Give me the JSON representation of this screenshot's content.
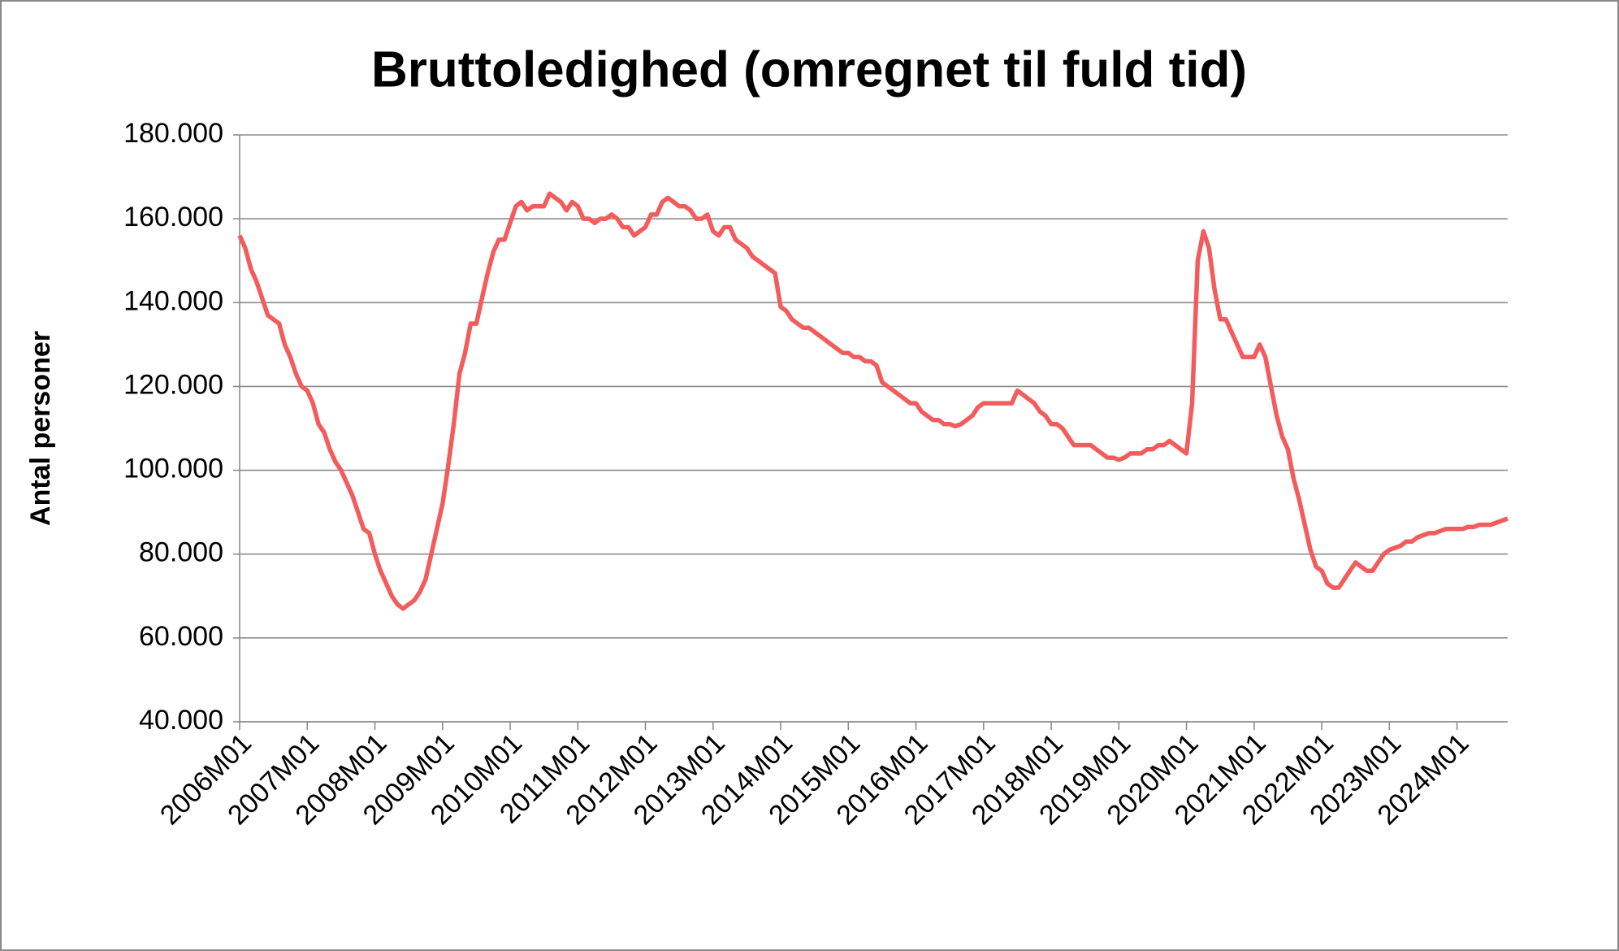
{
  "chart_data": {
    "type": "line",
    "title": "Bruttoledighed (omregnet til fuld tid)",
    "y_label": "Antal personer",
    "categories": [
      "2006M01",
      null,
      null,
      null,
      null,
      null,
      null,
      null,
      null,
      null,
      null,
      null,
      "2007M01",
      null,
      null,
      null,
      null,
      null,
      null,
      null,
      null,
      null,
      null,
      null,
      "2008M01",
      null,
      null,
      null,
      null,
      null,
      null,
      null,
      null,
      null,
      null,
      null,
      "2009M01",
      null,
      null,
      null,
      null,
      null,
      null,
      null,
      null,
      null,
      null,
      null,
      "2010M01",
      null,
      null,
      null,
      null,
      null,
      null,
      null,
      null,
      null,
      null,
      null,
      "2011M01",
      null,
      null,
      null,
      null,
      null,
      null,
      null,
      null,
      null,
      null,
      null,
      "2012M01",
      null,
      null,
      null,
      null,
      null,
      null,
      null,
      null,
      null,
      null,
      null,
      "2013M01",
      null,
      null,
      null,
      null,
      null,
      null,
      null,
      null,
      null,
      null,
      null,
      "2014M01",
      null,
      null,
      null,
      null,
      null,
      null,
      null,
      null,
      null,
      null,
      null,
      "2015M01",
      null,
      null,
      null,
      null,
      null,
      null,
      null,
      null,
      null,
      null,
      null,
      "2016M01",
      null,
      null,
      null,
      null,
      null,
      null,
      null,
      null,
      null,
      null,
      null,
      "2017M01",
      null,
      null,
      null,
      null,
      null,
      null,
      null,
      null,
      null,
      null,
      null,
      "2018M01",
      null,
      null,
      null,
      null,
      null,
      null,
      null,
      null,
      null,
      null,
      null,
      "2019M01",
      null,
      null,
      null,
      null,
      null,
      null,
      null,
      null,
      null,
      null,
      null,
      "2020M01",
      null,
      null,
      null,
      null,
      null,
      null,
      null,
      null,
      null,
      null,
      null,
      "2021M01",
      null,
      null,
      null,
      null,
      null,
      null,
      null,
      null,
      null,
      null,
      null,
      "2022M01",
      null,
      null,
      null,
      null,
      null,
      null,
      null,
      null,
      null,
      null,
      null,
      "2023M01",
      null,
      null,
      null,
      null,
      null,
      null,
      null,
      null,
      null,
      null,
      null,
      "2024M01",
      null,
      null,
      null,
      null,
      null,
      null,
      null,
      null,
      null
    ],
    "series": [
      {
        "color": "#f25c5c",
        "values": [
          156000,
          153000,
          148000,
          145000,
          141000,
          137000,
          136000,
          135000,
          130000,
          127000,
          123000,
          120000,
          119000,
          116000,
          111000,
          109000,
          105000,
          102000,
          100000,
          97000,
          94000,
          90000,
          86000,
          85000,
          80000,
          76000,
          73000,
          70000,
          68000,
          67000,
          68000,
          69000,
          71000,
          74000,
          80000,
          86000,
          92000,
          101000,
          111000,
          123000,
          128000,
          135000,
          135000,
          141000,
          147000,
          152000,
          155000,
          155000,
          159000,
          163000,
          164000,
          162000,
          163000,
          163000,
          163000,
          166000,
          165000,
          164000,
          162000,
          164000,
          163000,
          160000,
          160000,
          159000,
          160000,
          160000,
          161000,
          160000,
          158000,
          158000,
          156000,
          157000,
          158000,
          161000,
          161000,
          164000,
          165000,
          164000,
          163000,
          163000,
          162000,
          160000,
          160000,
          161000,
          157000,
          156000,
          158000,
          158000,
          155000,
          154000,
          153000,
          151000,
          150000,
          149000,
          148000,
          147000,
          139000,
          138000,
          136000,
          135000,
          134000,
          134000,
          133000,
          132000,
          131000,
          130000,
          129000,
          128000,
          128000,
          127000,
          127000,
          126000,
          126000,
          125000,
          121000,
          120000,
          119000,
          118000,
          117000,
          116000,
          116000,
          114000,
          113000,
          112000,
          112000,
          111000,
          111000,
          110500,
          111000,
          112000,
          113000,
          115000,
          116000,
          116000,
          116000,
          116000,
          116000,
          116000,
          119000,
          118000,
          117000,
          116000,
          114000,
          113000,
          111000,
          111000,
          110000,
          108000,
          106000,
          106000,
          106000,
          106000,
          105000,
          104000,
          103000,
          103000,
          102500,
          103000,
          104000,
          104000,
          104000,
          105000,
          105000,
          106000,
          106000,
          107000,
          106000,
          105000,
          104000,
          116000,
          150000,
          157000,
          153000,
          143000,
          136000,
          136000,
          133000,
          130000,
          127000,
          127000,
          127000,
          130000,
          127000,
          120000,
          113000,
          108000,
          105000,
          98000,
          93000,
          87000,
          81000,
          77000,
          76000,
          73000,
          72000,
          72000,
          74000,
          76000,
          78000,
          77000,
          76000,
          76000,
          78000,
          80000,
          81000,
          81500,
          82000,
          83000,
          83000,
          84000,
          84500,
          85000,
          85000,
          85500,
          86000,
          86000,
          86000,
          86000,
          86500,
          86500,
          87000,
          87000,
          87000,
          87500,
          88000,
          88500
        ]
      }
    ],
    "ylim": [
      40000,
      180000
    ],
    "yticks": [
      {
        "value": 40000,
        "label": "40.000"
      },
      {
        "value": 60000,
        "label": "60.000"
      },
      {
        "value": 80000,
        "label": "80.000"
      },
      {
        "value": 100000,
        "label": "100.000"
      },
      {
        "value": 120000,
        "label": "120.000"
      },
      {
        "value": 140000,
        "label": "140.000"
      },
      {
        "value": 160000,
        "label": "160.000"
      },
      {
        "value": 180000,
        "label": "180.000"
      }
    ],
    "grid": true
  }
}
